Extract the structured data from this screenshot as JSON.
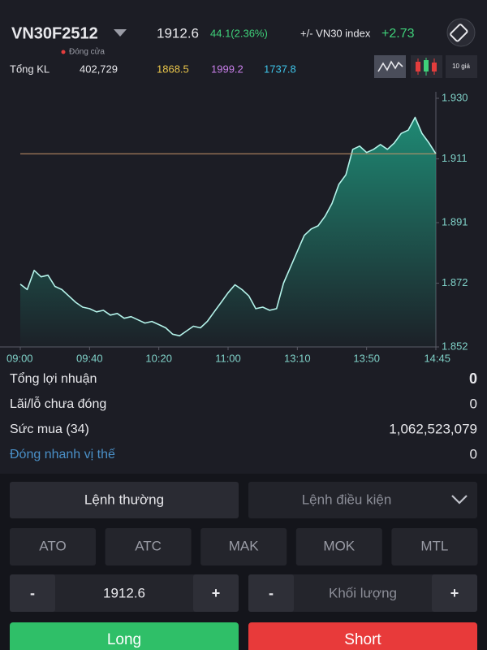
{
  "header": {
    "symbol": "VN30F2512",
    "price": "1912.6",
    "change": "44.1(2.36%)",
    "index_label": "+/- VN30 index",
    "index_change": "+2.73",
    "status": "Đóng cửa",
    "volume_label": "Tổng KL",
    "volume": "402,729",
    "reference": "1868.5",
    "ceiling": "1999.2",
    "floor": "1737.8",
    "depth_button": "10 giá"
  },
  "chart": {
    "type": "line",
    "color": "#b4f3ea",
    "fill": "#1f8f78",
    "values": [
      1871.7,
      1870,
      1876,
      1874,
      1874.5,
      1871,
      1870,
      1868,
      1866,
      1864.5,
      1864,
      1863,
      1863.5,
      1862,
      1862.5,
      1861,
      1861.5,
      1860.5,
      1859.5,
      1860,
      1859,
      1858,
      1856,
      1855.5,
      1857,
      1858.5,
      1858,
      1860,
      1863,
      1866,
      1869,
      1871.5,
      1870,
      1868,
      1864,
      1864.5,
      1863.5,
      1864,
      1872,
      1877,
      1882,
      1887,
      1889,
      1890,
      1893,
      1897,
      1903,
      1906,
      1914,
      1915,
      1913,
      1914,
      1915.5,
      1914,
      1916,
      1919,
      1920,
      1924,
      1919,
      1916,
      1912.6
    ],
    "xlim": [
      0,
      60
    ],
    "xticks": [
      {
        "value": 0,
        "label": "09:00"
      },
      {
        "value": 10,
        "label": "09:40"
      },
      {
        "value": 20,
        "label": "10:20"
      },
      {
        "value": 30,
        "label": "11:00"
      },
      {
        "value": 40,
        "label": "13:10"
      },
      {
        "value": 50,
        "label": "13:50"
      },
      {
        "value": 60,
        "label": "14:45"
      }
    ],
    "ylim": [
      1852,
      1930
    ],
    "yticks": [
      {
        "value": 1930,
        "label": "1.930"
      },
      {
        "value": 1911,
        "label": "1.911"
      },
      {
        "value": 1891,
        "label": "1.891"
      },
      {
        "value": 1872,
        "label": "1.872"
      },
      {
        "value": 1852,
        "label": "1.852"
      }
    ],
    "reference_line": 1912.6,
    "reference_color": "#c8956a"
  },
  "account": {
    "rows": [
      {
        "label": "Tổng lợi nhuận",
        "value": "0"
      },
      {
        "label": "Lãi/lỗ chưa đóng",
        "value": "0"
      },
      {
        "label": "Sức mua (34)",
        "value": "1,062,523,079"
      },
      {
        "label": "Đóng nhanh vị thế",
        "value": "0"
      }
    ]
  },
  "order": {
    "tabs": [
      "Lệnh thường",
      "Lệnh điều kiện"
    ],
    "types": [
      "ATO",
      "ATC",
      "MAK",
      "MOK",
      "MTL"
    ],
    "price": {
      "minus": "-",
      "value": "1912.6",
      "plus": "+"
    },
    "quantity": {
      "minus": "-",
      "placeholder": "Khối lượng",
      "plus": "+"
    },
    "buttons": [
      "Long",
      "Short"
    ]
  }
}
